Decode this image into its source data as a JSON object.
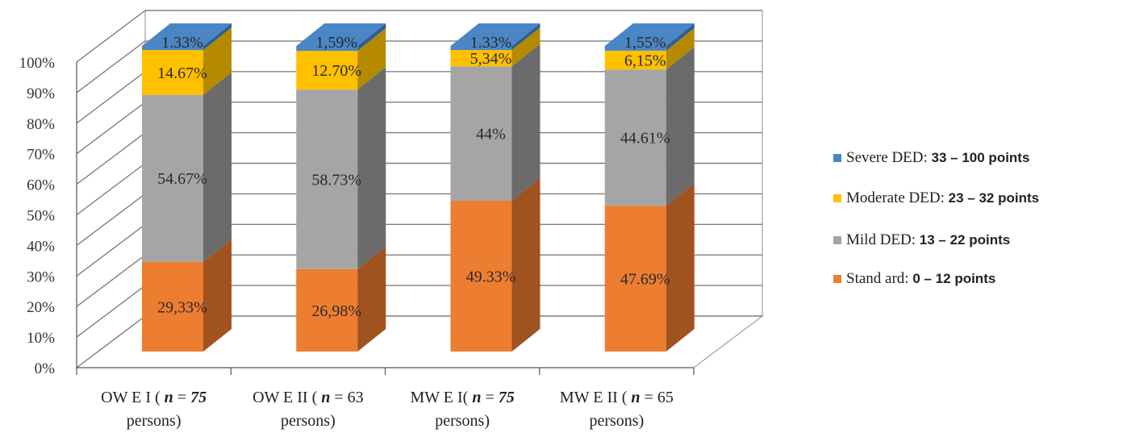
{
  "chart_data": {
    "type": "bar",
    "stacked": true,
    "percent_axis": true,
    "ylim": [
      0,
      100
    ],
    "yticks": [
      "0%",
      "10%",
      "20%",
      "30%",
      "40%",
      "50%",
      "60%",
      "70%",
      "80%",
      "90%",
      "100%"
    ],
    "categories": [
      {
        "line1_a": "OW E I ( ",
        "italic": "n",
        "line1_b": " = ",
        "bold_num": "75",
        "line2": "persons)"
      },
      {
        "line1_a": "OW E II ( ",
        "italic": "n",
        "line1_b": " = 63",
        "bold_num": "",
        "line2": "persons)"
      },
      {
        "line1_a": "MW E I( ",
        "italic": "n",
        "line1_b": " = ",
        "bold_num": "75",
        "line2": "persons)"
      },
      {
        "line1_a": "MW E II ( ",
        "italic": "n",
        "line1_b": " = 65",
        "bold_num": "",
        "line2": "persons)"
      }
    ],
    "series": [
      {
        "name": "Standard",
        "values": [
          29.33,
          26.98,
          49.33,
          47.69
        ],
        "labels": [
          "29,33%",
          "26,98%",
          "49.33%",
          "47.69%"
        ],
        "color": "#ED7D31",
        "side_color": "#A0521F"
      },
      {
        "name": "Mild DED",
        "values": [
          54.67,
          58.73,
          44,
          44.61
        ],
        "labels": [
          "54.67%",
          "58.73%",
          "44%",
          "44.61%"
        ],
        "color": "#A5A5A5",
        "side_color": "#6B6B6B"
      },
      {
        "name": "Moderate DED",
        "values": [
          14.67,
          12.7,
          5.34,
          6.15
        ],
        "labels": [
          "14.67%",
          "12.70%",
          "5,34%",
          "6,15%"
        ],
        "color": "#FFC000",
        "side_color": "#B58A00"
      },
      {
        "name": "Severe DED",
        "values": [
          1.33,
          1.59,
          1.33,
          1.55
        ],
        "labels": [
          "1.33%",
          "1,59%",
          "1.33%",
          "1,55%"
        ],
        "color": "#4A86C5",
        "side_color": "#2F5F90"
      }
    ],
    "legend": {
      "placement": "right",
      "entries": [
        {
          "series": "Severe DED",
          "label_a": "Severe DED: ",
          "label_b": "33 – 100 points",
          "color": "#4A86C5"
        },
        {
          "series": "Moderate DED",
          "label_a": "Moderate DED:  ",
          "label_b": "23 – 32 points",
          "color": "#FFC000"
        },
        {
          "series": "Mild DED",
          "label_a": "Mild DED: ",
          "label_b": "13 – 22 points",
          "color": "#A5A5A5"
        },
        {
          "series": "Standard",
          "label_a": "Stand ard: ",
          "label_b": "0 – 12 points",
          "color": "#ED7D31"
        }
      ]
    },
    "grid": true,
    "style_3d": true
  }
}
